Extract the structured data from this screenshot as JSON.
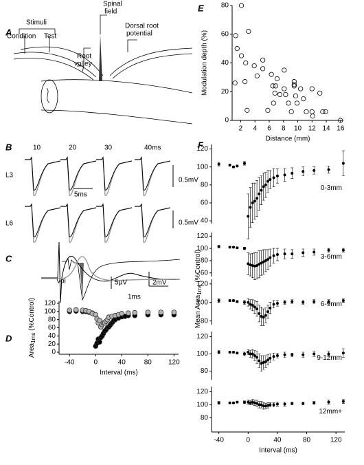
{
  "panel_A": {
    "label": "A",
    "stimuli": "Stimuli",
    "condition": "Condition",
    "test": "Test",
    "root_volley": [
      "Root",
      "volley"
    ],
    "spinal_field": [
      "Spinal",
      "field"
    ],
    "dorsal_root_potential": [
      "Dorsal root",
      "potential"
    ]
  },
  "panel_B": {
    "label": "B",
    "intervals": [
      "10",
      "20",
      "30",
      "40ms"
    ],
    "rows": [
      "L3",
      "L6"
    ],
    "scale_v": [
      "0.5mV",
      "0.5mV"
    ],
    "scale_t": "5ms"
  },
  "panel_C": {
    "label": "C",
    "volley": "Vol",
    "scale_v": "2mV",
    "scale_t": "1ms"
  },
  "panel_D": {
    "label": "D",
    "scale_v": "5µV"
  },
  "panel_E": {
    "label": "E"
  },
  "panel_F": {
    "label": "F",
    "y_label": [
      "Mean Area",
      "1ms",
      "(%Control)"
    ]
  },
  "chart_data": [
    {
      "type": "scatter",
      "y_label": [
        "Area",
        "1ms",
        "(%Control)"
      ],
      "x_label": "Interval (ms)",
      "xlim": [
        -56,
        127
      ],
      "ylim": [
        -5,
        125
      ],
      "xticks": [
        -40,
        0,
        40,
        80,
        120
      ],
      "yticks": [
        0,
        20,
        40,
        60,
        80,
        100,
        120
      ],
      "marker": "filled",
      "series": [
        {
          "color": "#000000",
          "x": [
            -40,
            -30,
            -20,
            -15,
            -10,
            -5,
            0,
            2,
            4,
            6,
            8,
            10,
            12,
            14,
            16,
            18,
            20,
            22,
            24,
            26,
            28,
            30,
            35,
            40,
            45,
            50,
            60,
            80,
            100,
            120
          ],
          "values": [
            100,
            101,
            100,
            100,
            98,
            96,
            15,
            22,
            32,
            25,
            36,
            40,
            46,
            52,
            55,
            60,
            62,
            66,
            70,
            74,
            78,
            80,
            84,
            87,
            88,
            90,
            90,
            92,
            92,
            92
          ]
        },
        {
          "color": "#b4b4b4",
          "x": [
            -40,
            -30,
            -20,
            -15,
            -10,
            -5,
            0,
            2,
            4,
            6,
            8,
            10,
            12,
            14,
            16,
            18,
            20,
            25,
            30,
            35,
            40,
            50,
            60,
            80,
            100,
            120
          ],
          "values": [
            103,
            104,
            103,
            102,
            100,
            95,
            92,
            82,
            72,
            78,
            62,
            68,
            72,
            72,
            76,
            80,
            86,
            88,
            90,
            92,
            95,
            96,
            97,
            98,
            98,
            98
          ]
        }
      ]
    },
    {
      "type": "scatter",
      "x_label": "Distance (mm)",
      "y_label": "Modulation depth (%)",
      "xlim": [
        0.8,
        16.4
      ],
      "ylim": [
        0,
        80
      ],
      "xticks": [
        2,
        4,
        6,
        8,
        10,
        12,
        14,
        16
      ],
      "yticks": [
        0,
        20,
        40,
        60,
        80
      ],
      "marker": "open",
      "series": [
        {
          "color": "#000000",
          "x": [
            2.1,
            1.3,
            1.5,
            2.1,
            3.1,
            2.7,
            3.9,
            4.3,
            5.1,
            5.1,
            1.2,
            2.6,
            6.3,
            6.5,
            6.9,
            7.1,
            6.8,
            7.5,
            8.1,
            8.1,
            8.3,
            8.7,
            9.1,
            9.5,
            9.5,
            9.5,
            9.7,
            9.9,
            10.4,
            10.8,
            11.2,
            12,
            12,
            12.1,
            13.1,
            13.5,
            13.9,
            2.9,
            5.8,
            6.6,
            16
          ],
          "values": [
            80,
            59,
            50,
            45,
            62,
            40,
            38,
            31,
            42,
            36,
            26,
            27,
            32,
            24,
            24,
            29,
            19,
            18,
            35,
            22,
            18,
            12,
            6,
            27,
            25,
            24,
            17,
            12,
            22,
            15,
            6,
            22,
            6,
            3,
            19,
            6,
            6,
            7,
            7,
            12,
            0
          ]
        }
      ]
    },
    {
      "type": "errorbar",
      "annotation": "0-3mm",
      "xlim": [
        -50,
        132
      ],
      "ylim": [
        37,
        125
      ],
      "yticks": [
        40,
        60,
        80,
        100,
        120
      ],
      "color": "#000000",
      "x": [
        -40,
        -25,
        -20,
        -15,
        -5,
        0,
        3,
        6,
        9,
        12,
        15,
        18,
        21,
        24,
        27,
        30,
        35,
        40,
        50,
        60,
        75,
        90,
        110,
        130
      ],
      "values": [
        103,
        102,
        100,
        101,
        104,
        45,
        55,
        60,
        62,
        65,
        70,
        74,
        78,
        80,
        84,
        86,
        88,
        90,
        91,
        93,
        95,
        96,
        97,
        104
      ],
      "errors": [
        2,
        1,
        1,
        1,
        2,
        25,
        22,
        22,
        20,
        20,
        18,
        16,
        15,
        14,
        12,
        10,
        10,
        8,
        7,
        6,
        5,
        4,
        4,
        14
      ]
    },
    {
      "type": "errorbar",
      "annotation": "3-6mm",
      "xlim": [
        -50,
        132
      ],
      "ylim": [
        54,
        126
      ],
      "yticks": [
        60,
        80,
        100,
        120
      ],
      "color": "#000000",
      "x": [
        -40,
        -25,
        -20,
        -15,
        -5,
        0,
        3,
        6,
        9,
        12,
        15,
        18,
        21,
        24,
        27,
        30,
        35,
        40,
        50,
        60,
        75,
        90,
        110,
        130
      ],
      "values": [
        103,
        102,
        102,
        101,
        100,
        75,
        73,
        72,
        71,
        72,
        74,
        76,
        78,
        80,
        82,
        85,
        88,
        90,
        91,
        91,
        93,
        94,
        97,
        97
      ],
      "errors": [
        2,
        1,
        1,
        1,
        2,
        18,
        18,
        20,
        22,
        22,
        22,
        20,
        20,
        18,
        16,
        14,
        12,
        10,
        8,
        7,
        6,
        5,
        3,
        3
      ]
    },
    {
      "type": "errorbar",
      "annotation": "6-9mm",
      "xlim": [
        -50,
        132
      ],
      "ylim": [
        76,
        125
      ],
      "yticks": [
        80,
        100,
        120
      ],
      "color": "#000000",
      "x": [
        -40,
        -25,
        -20,
        -15,
        -5,
        0,
        3,
        6,
        9,
        12,
        15,
        18,
        21,
        24,
        27,
        30,
        35,
        40,
        50,
        60,
        75,
        90,
        110,
        130
      ],
      "values": [
        102,
        102,
        102,
        101,
        100,
        100,
        98,
        97,
        95,
        93,
        88,
        85,
        84,
        86,
        90,
        94,
        98,
        99,
        100,
        101,
        100,
        101,
        101,
        102
      ],
      "errors": [
        2,
        1,
        1,
        1,
        2,
        4,
        5,
        6,
        7,
        8,
        9,
        10,
        9,
        8,
        7,
        6,
        4,
        3,
        2,
        2,
        2,
        2,
        2,
        2
      ]
    },
    {
      "type": "errorbar",
      "annotation": "9-12mm",
      "xlim": [
        -50,
        132
      ],
      "ylim": [
        70,
        126
      ],
      "yticks": [
        80,
        100,
        120
      ],
      "color": "#000000",
      "x": [
        -40,
        -25,
        -20,
        -15,
        -5,
        0,
        3,
        6,
        9,
        12,
        15,
        18,
        21,
        24,
        27,
        30,
        35,
        40,
        50,
        60,
        75,
        90,
        110,
        130
      ],
      "values": [
        102,
        102,
        102,
        101,
        100,
        102,
        100,
        100,
        98,
        96,
        92,
        89,
        90,
        91,
        93,
        95,
        97,
        98,
        99,
        99,
        99,
        100,
        100,
        101
      ],
      "errors": [
        2,
        1,
        1,
        1,
        2,
        3,
        4,
        5,
        6,
        7,
        8,
        9,
        8,
        7,
        6,
        5,
        4,
        3,
        3,
        2,
        3,
        3,
        3,
        5
      ]
    },
    {
      "type": "errorbar",
      "annotation": "12mm+",
      "x_label": "Interval (ms)",
      "xlim": [
        -50,
        132
      ],
      "ylim": [
        58,
        128
      ],
      "xticks": [
        -40,
        0,
        40,
        80,
        120
      ],
      "yticks": [
        80,
        100,
        120
      ],
      "color": "#000000",
      "x": [
        -40,
        -25,
        -20,
        -15,
        -5,
        0,
        3,
        6,
        9,
        12,
        15,
        18,
        21,
        24,
        27,
        30,
        35,
        40,
        50,
        60,
        75,
        90,
        110,
        130
      ],
      "values": [
        103,
        103,
        103,
        104,
        104,
        104,
        103,
        104,
        103,
        102,
        100,
        100,
        98,
        98,
        99,
        100,
        100,
        101,
        101,
        102,
        102,
        103,
        104,
        105
      ],
      "errors": [
        2,
        1,
        1,
        1,
        2,
        3,
        3,
        4,
        4,
        5,
        5,
        5,
        5,
        4,
        4,
        3,
        3,
        3,
        3,
        2,
        2,
        2,
        3,
        3
      ]
    }
  ]
}
